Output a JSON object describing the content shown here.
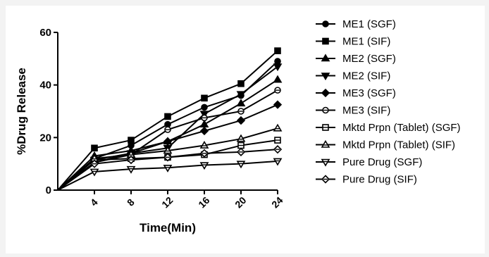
{
  "chart_data": {
    "type": "line",
    "xlabel": "Time(Min)",
    "ylabel": "%Drug Release",
    "x": [
      0,
      4,
      8,
      12,
      16,
      20,
      24
    ],
    "x_ticks": [
      4,
      8,
      12,
      16,
      20,
      24
    ],
    "y_ticks": [
      0,
      20,
      40,
      60
    ],
    "xlim": [
      0,
      24
    ],
    "ylim": [
      0,
      60
    ],
    "grid": false,
    "legend_position": "right",
    "series": [
      {
        "name": "ME1 (SGF)",
        "marker": "circle-filled",
        "values": [
          0,
          12,
          17,
          25,
          31.5,
          36,
          49
        ]
      },
      {
        "name": "ME1 (SIF)",
        "marker": "square-filled",
        "values": [
          0,
          16,
          19,
          28,
          35,
          40.5,
          53
        ]
      },
      {
        "name": "ME2 (SGF)",
        "marker": "triangle-up-filled",
        "values": [
          0,
          13,
          15,
          18.5,
          25,
          33,
          42
        ]
      },
      {
        "name": "ME2 (SIF)",
        "marker": "triangle-down-filled",
        "values": [
          0,
          11.5,
          14,
          16,
          29,
          36.5,
          47
        ]
      },
      {
        "name": "ME3 (SGF)",
        "marker": "diamond-filled",
        "values": [
          0,
          10.5,
          14,
          18.5,
          22.5,
          26.5,
          32.5
        ]
      },
      {
        "name": "ME3 (SIF)",
        "marker": "circle-open",
        "values": [
          0,
          10.5,
          13.5,
          23,
          27.5,
          30,
          38
        ]
      },
      {
        "name": "Mktd Prpn (Tablet) (SGF)",
        "marker": "square-open",
        "values": [
          0,
          11.5,
          12,
          12.5,
          13.5,
          17,
          19
        ]
      },
      {
        "name": "Mktd Prpn (Tablet) (SIF)",
        "marker": "triangle-up-open",
        "values": [
          0,
          12,
          13.5,
          15,
          17,
          19.5,
          23.5
        ]
      },
      {
        "name": "Pure Drug (SGF)",
        "marker": "triangle-down-open",
        "values": [
          0,
          7,
          8,
          8.5,
          9.5,
          10,
          11
        ]
      },
      {
        "name": "Pure Drug (SIF)",
        "marker": "diamond-open",
        "values": [
          0,
          10,
          11.5,
          12.5,
          14,
          14.5,
          15.5
        ]
      }
    ]
  }
}
